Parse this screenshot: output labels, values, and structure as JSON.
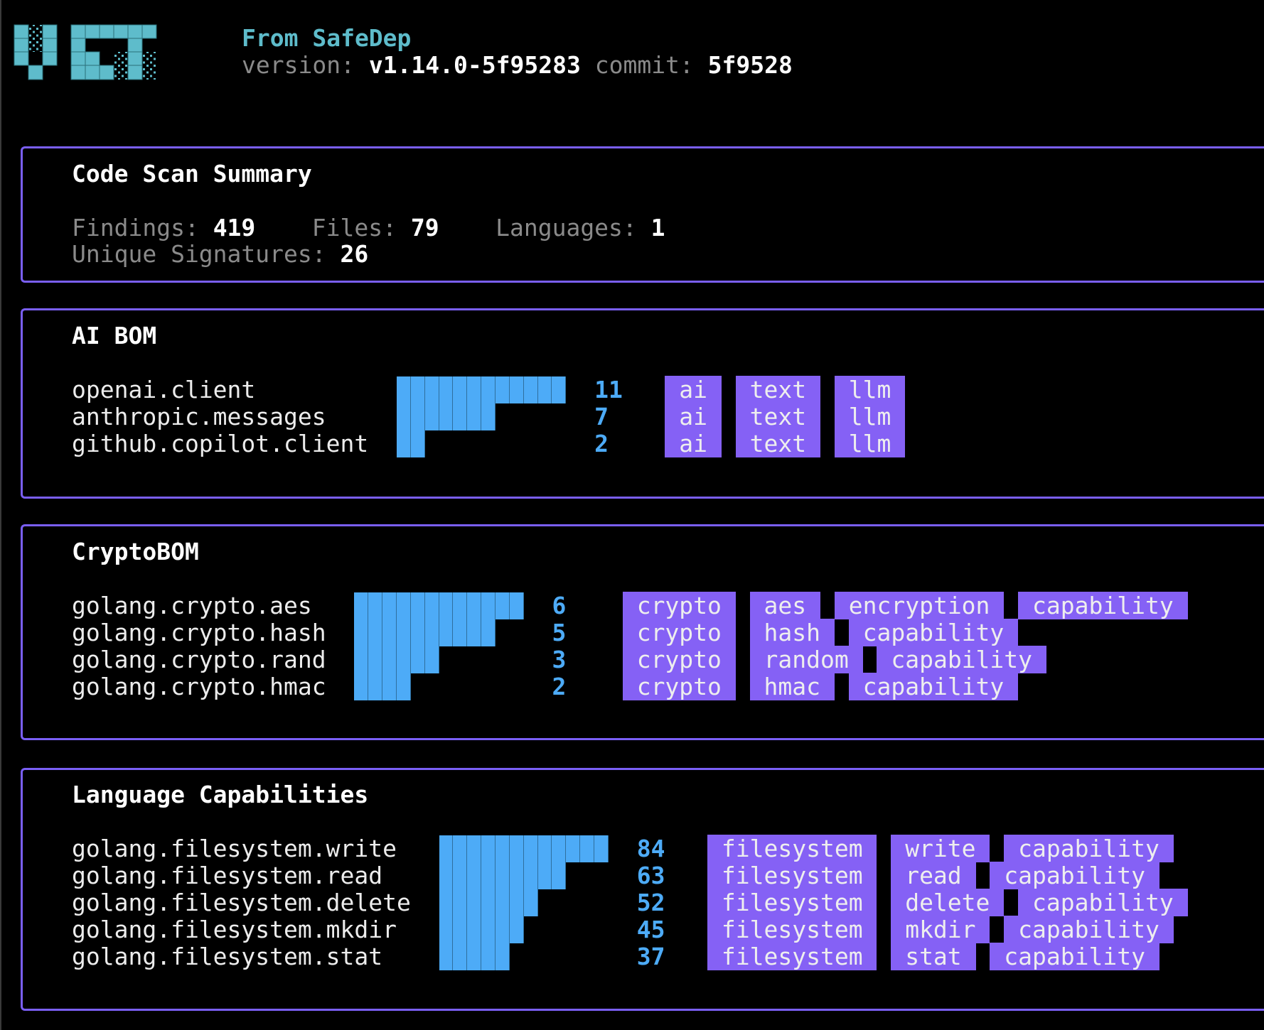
{
  "header": {
    "logo_text": "VET",
    "from": "From SafeDep",
    "version_label": "version:",
    "version": "v1.14.0-5f95283",
    "commit_label": "commit:",
    "commit": "5f9528"
  },
  "summary": {
    "title": "Code Scan Summary",
    "findings_label": "Findings:",
    "findings": "419",
    "files_label": "Files:",
    "files": "79",
    "languages_label": "Languages:",
    "languages": "1",
    "signatures_label": "Unique Signatures:",
    "signatures": "26"
  },
  "colors": {
    "accent": "#7a5ff5",
    "bar": "#4dabf7",
    "tag": "#8561f5",
    "logo": "#5ebccb"
  },
  "sections": [
    {
      "title": "AI BOM",
      "bar_max_cells": 12,
      "items": [
        {
          "name": "openai.client",
          "count": 11,
          "tags": [
            "ai",
            "text",
            "llm"
          ]
        },
        {
          "name": "anthropic.messages",
          "count": 7,
          "tags": [
            "ai",
            "text",
            "llm"
          ]
        },
        {
          "name": "github.copilot.client",
          "count": 2,
          "tags": [
            "ai",
            "text",
            "llm"
          ]
        }
      ]
    },
    {
      "title": "CryptoBOM",
      "bar_max_cells": 12,
      "items": [
        {
          "name": "golang.crypto.aes",
          "count": 6,
          "tags": [
            "crypto",
            "aes",
            "encryption",
            "capability"
          ]
        },
        {
          "name": "golang.crypto.hash",
          "count": 5,
          "tags": [
            "crypto",
            "hash",
            "capability"
          ]
        },
        {
          "name": "golang.crypto.rand",
          "count": 3,
          "tags": [
            "crypto",
            "random",
            "capability"
          ]
        },
        {
          "name": "golang.crypto.hmac",
          "count": 2,
          "tags": [
            "crypto",
            "hmac",
            "capability"
          ]
        }
      ]
    },
    {
      "title": "Language Capabilities",
      "bar_max_cells": 12,
      "items": [
        {
          "name": "golang.filesystem.write",
          "count": 84,
          "tags": [
            "filesystem",
            "write",
            "capability"
          ]
        },
        {
          "name": "golang.filesystem.read",
          "count": 63,
          "tags": [
            "filesystem",
            "read",
            "capability"
          ]
        },
        {
          "name": "golang.filesystem.delete",
          "count": 52,
          "tags": [
            "filesystem",
            "delete",
            "capability"
          ]
        },
        {
          "name": "golang.filesystem.mkdir",
          "count": 45,
          "tags": [
            "filesystem",
            "mkdir",
            "capability"
          ]
        },
        {
          "name": "golang.filesystem.stat",
          "count": 37,
          "tags": [
            "filesystem",
            "stat",
            "capability"
          ]
        }
      ]
    }
  ]
}
